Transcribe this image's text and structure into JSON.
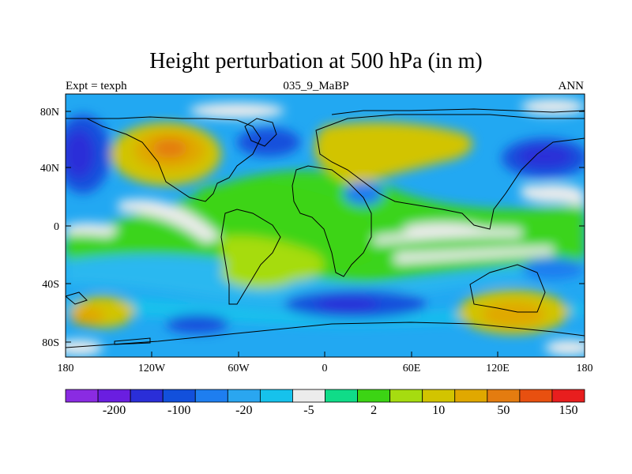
{
  "map": {
    "title": "Height perturbation at 500 hPa (in m)",
    "subtitle_left": "Expt = texph",
    "subtitle_center": "035_9_MaBP",
    "subtitle_right": "ANN",
    "lat_ticks": [
      "80N",
      "40N",
      "0",
      "40S",
      "80S"
    ],
    "lon_ticks": [
      "180",
      "120W",
      "60W",
      "0",
      "60E",
      "120E",
      "180"
    ]
  },
  "colorbar": {
    "labels": [
      "-200",
      "-100",
      "-20",
      "-5",
      "2",
      "10",
      "50",
      "150"
    ],
    "colors": [
      "#8a2be2",
      "#6a1ee0",
      "#2a2ed8",
      "#1250dc",
      "#1e7ef0",
      "#2aa6f0",
      "#16c2ec",
      "#ececec",
      "#10dc88",
      "#3cd414",
      "#a6dc10",
      "#d2c400",
      "#e0a800",
      "#e47c10",
      "#e85010",
      "#e81e1e"
    ]
  }
}
